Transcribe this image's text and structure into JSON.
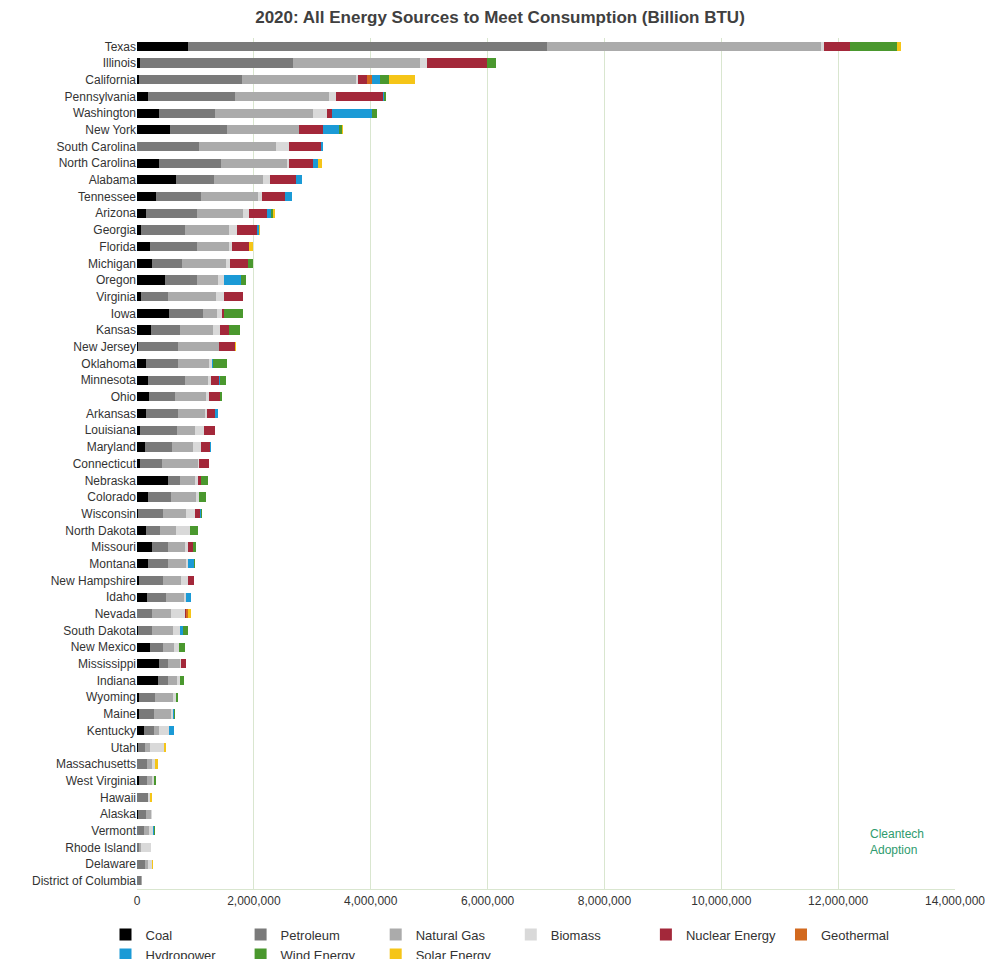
{
  "chart_data": {
    "type": "bar",
    "orientation": "horizontal",
    "stacked": true,
    "title": "2020: All Energy Sources to Meet Consumption (Billion BTU)",
    "annotations": [
      "Cleantech Adoption"
    ],
    "categories": [
      "Texas",
      "Illinois",
      "California",
      "Pennsylvania",
      "Washington",
      "New York",
      "South Carolina",
      "North Carolina",
      "Alabama",
      "Tennessee",
      "Arizona",
      "Georgia",
      "Florida",
      "Michigan",
      "Oregon",
      "Virginia",
      "Iowa",
      "Kansas",
      "New Jersey",
      "Oklahoma",
      "Minnesota",
      "Ohio",
      "Arkansas",
      "Louisiana",
      "Maryland",
      "Connecticut",
      "Nebraska",
      "Colorado",
      "Wisconsin",
      "North Dakota",
      "Missouri",
      "Montana",
      "New Hampshire",
      "Idaho",
      "Nevada",
      "South Dakota",
      "New Mexico",
      "Mississippi",
      "Indiana",
      "Wyoming",
      "Maine",
      "Kentucky",
      "Utah",
      "Massachusetts",
      "West Virginia",
      "Hawaii",
      "Alaska",
      "Vermont",
      "Rhode Island",
      "Delaware",
      "District of Columbia"
    ],
    "series": [
      {
        "name": "Coal",
        "color": "#000000",
        "values": [
          870000,
          50000,
          30000,
          190000,
          380000,
          560000,
          5000,
          380000,
          670000,
          330000,
          150000,
          70000,
          220000,
          260000,
          480000,
          70000,
          550000,
          240000,
          15000,
          150000,
          190000,
          210000,
          150000,
          50000,
          140000,
          50000,
          530000,
          190000,
          15000,
          150000,
          260000,
          190000,
          30000,
          170000,
          5000,
          10000,
          220000,
          380000,
          360000,
          30000,
          30000,
          120000,
          15000,
          0,
          30000,
          5000,
          15000,
          0,
          0,
          0,
          0
        ]
      },
      {
        "name": "Petroleum",
        "color": "#7a7a7a",
        "values": [
          6150000,
          2620000,
          1760000,
          1490000,
          960000,
          980000,
          1060000,
          1060000,
          650000,
          770000,
          870000,
          750000,
          800000,
          510000,
          550000,
          460000,
          580000,
          500000,
          680000,
          550000,
          630000,
          440000,
          550000,
          630000,
          460000,
          380000,
          200000,
          390000,
          430000,
          240000,
          270000,
          340000,
          410000,
          320000,
          260000,
          240000,
          220000,
          150000,
          170000,
          270000,
          260000,
          170000,
          120000,
          170000,
          140000,
          190000,
          140000,
          120000,
          30000,
          140000,
          70000
        ]
      },
      {
        "name": "Natural Gas",
        "color": "#ababab",
        "values": [
          4690000,
          2170000,
          1950000,
          1610000,
          1680000,
          1230000,
          1320000,
          1130000,
          840000,
          970000,
          790000,
          750000,
          550000,
          750000,
          360000,
          820000,
          240000,
          560000,
          700000,
          530000,
          390000,
          530000,
          460000,
          320000,
          360000,
          620000,
          260000,
          430000,
          390000,
          270000,
          290000,
          310000,
          310000,
          310000,
          310000,
          360000,
          200000,
          200000,
          150000,
          310000,
          290000,
          85000,
          85000,
          85000,
          85000,
          0,
          85000,
          85000,
          30000,
          50000,
          15000
        ]
      },
      {
        "name": "Biomass",
        "color": "#d9d9d9",
        "values": [
          40000,
          120000,
          40000,
          120000,
          240000,
          10000,
          220000,
          30000,
          120000,
          70000,
          100000,
          140000,
          50000,
          70000,
          100000,
          140000,
          85000,
          120000,
          5000,
          50000,
          50000,
          50000,
          30000,
          140000,
          140000,
          5000,
          50000,
          50000,
          150000,
          240000,
          50000,
          30000,
          120000,
          30000,
          240000,
          120000,
          85000,
          15000,
          50000,
          50000,
          30000,
          170000,
          240000,
          50000,
          30000,
          30000,
          15000,
          70000,
          180000,
          70000,
          0
        ]
      },
      {
        "name": "Nuclear Energy",
        "color": "#a3283a",
        "values": [
          445000,
          1030000,
          150000,
          800000,
          85000,
          410000,
          550000,
          410000,
          440000,
          390000,
          310000,
          340000,
          290000,
          310000,
          0,
          320000,
          30000,
          150000,
          270000,
          0,
          150000,
          190000,
          140000,
          190000,
          150000,
          170000,
          50000,
          0,
          100000,
          0,
          85000,
          0,
          100000,
          0,
          30000,
          0,
          0,
          85000,
          0,
          0,
          0,
          0,
          0,
          5000,
          0,
          0,
          0,
          0,
          0,
          0,
          0
        ]
      },
      {
        "name": "Geothermal",
        "color": "#d2691e",
        "values": [
          0,
          0,
          85000,
          0,
          0,
          0,
          0,
          0,
          0,
          0,
          0,
          0,
          0,
          0,
          0,
          0,
          0,
          0,
          0,
          0,
          0,
          0,
          0,
          0,
          0,
          0,
          0,
          0,
          0,
          0,
          0,
          0,
          0,
          0,
          30000,
          0,
          0,
          0,
          0,
          0,
          0,
          0,
          0,
          0,
          0,
          0,
          0,
          0,
          0,
          0,
          0
        ]
      },
      {
        "name": "Hydropower",
        "color": "#1b9ad6",
        "values": [
          0,
          0,
          150000,
          10000,
          680000,
          270000,
          30000,
          80000,
          100000,
          120000,
          70000,
          30000,
          0,
          0,
          290000,
          0,
          5000,
          0,
          0,
          20000,
          10000,
          0,
          50000,
          0,
          15000,
          0,
          0,
          0,
          5000,
          0,
          0,
          100000,
          0,
          100000,
          0,
          50000,
          0,
          0,
          0,
          0,
          15000,
          85000,
          0,
          0,
          5000,
          0,
          5000,
          15000,
          0,
          0,
          0
        ]
      },
      {
        "name": "Wind Energy",
        "color": "#4a982e",
        "values": [
          804000,
          150000,
          140000,
          50000,
          85000,
          50000,
          0,
          0,
          0,
          0,
          30000,
          0,
          0,
          80000,
          85000,
          0,
          320000,
          200000,
          0,
          240000,
          100000,
          30000,
          0,
          0,
          0,
          0,
          120000,
          120000,
          30000,
          150000,
          50000,
          30000,
          0,
          0,
          0,
          85000,
          100000,
          0,
          70000,
          50000,
          30000,
          0,
          0,
          0,
          30000,
          0,
          0,
          15000,
          0,
          0,
          0
        ]
      },
      {
        "name": "Solar Energy",
        "color": "#f5c518",
        "values": [
          85000,
          5000,
          460000,
          0,
          0,
          10000,
          0,
          70000,
          0,
          0,
          50000,
          30000,
          80000,
          0,
          0,
          5000,
          0,
          0,
          30000,
          0,
          0,
          0,
          0,
          0,
          0,
          0,
          0,
          0,
          0,
          0,
          0,
          0,
          0,
          0,
          50000,
          0,
          0,
          0,
          0,
          0,
          0,
          0,
          30000,
          50000,
          0,
          30000,
          0,
          0,
          0,
          15000,
          0
        ]
      }
    ],
    "xlim": [
      0,
      14000000
    ],
    "xticks": [
      0,
      {
        "value": 2000000,
        "label": "2,000,000"
      },
      {
        "value": 4000000,
        "label": "4,000,000"
      },
      {
        "value": 6000000,
        "label": "6,000,000"
      },
      {
        "value": 8000000,
        "label": "8,000,000"
      },
      {
        "value": 10000000,
        "label": "10,000,000"
      },
      {
        "value": 12000000,
        "label": "12,000,000"
      },
      {
        "value": 14000000,
        "label": "14,000,000"
      }
    ],
    "grid": true,
    "legend": "bottom"
  }
}
